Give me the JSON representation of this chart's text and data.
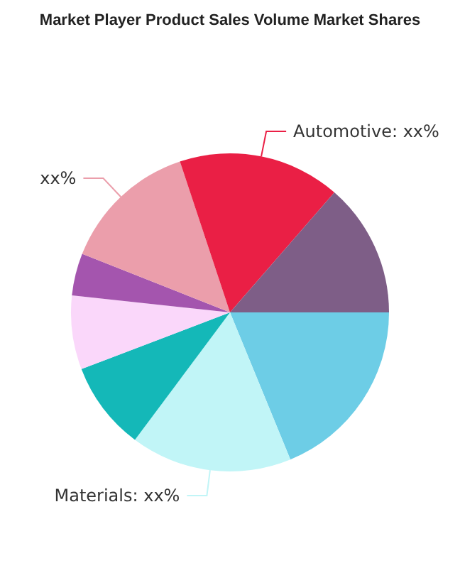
{
  "chart_data": {
    "type": "pie",
    "title": "Market Player Product Sales Volume Market Shares",
    "categories": [
      null,
      "Materials: xx%",
      null,
      null,
      null,
      "xx%",
      "Automotive: xx%",
      null
    ],
    "values": [
      18.8,
      16.4,
      9.0,
      7.5,
      4.3,
      13.9,
      16.5,
      13.6
    ],
    "colors": [
      "#6dcde6",
      "#c1f5f7",
      "#14b8b8",
      "#fad7fa",
      "#a455ae",
      "#eb9eab",
      "#ea1f45",
      "#7e5e87"
    ],
    "legend": false
  }
}
